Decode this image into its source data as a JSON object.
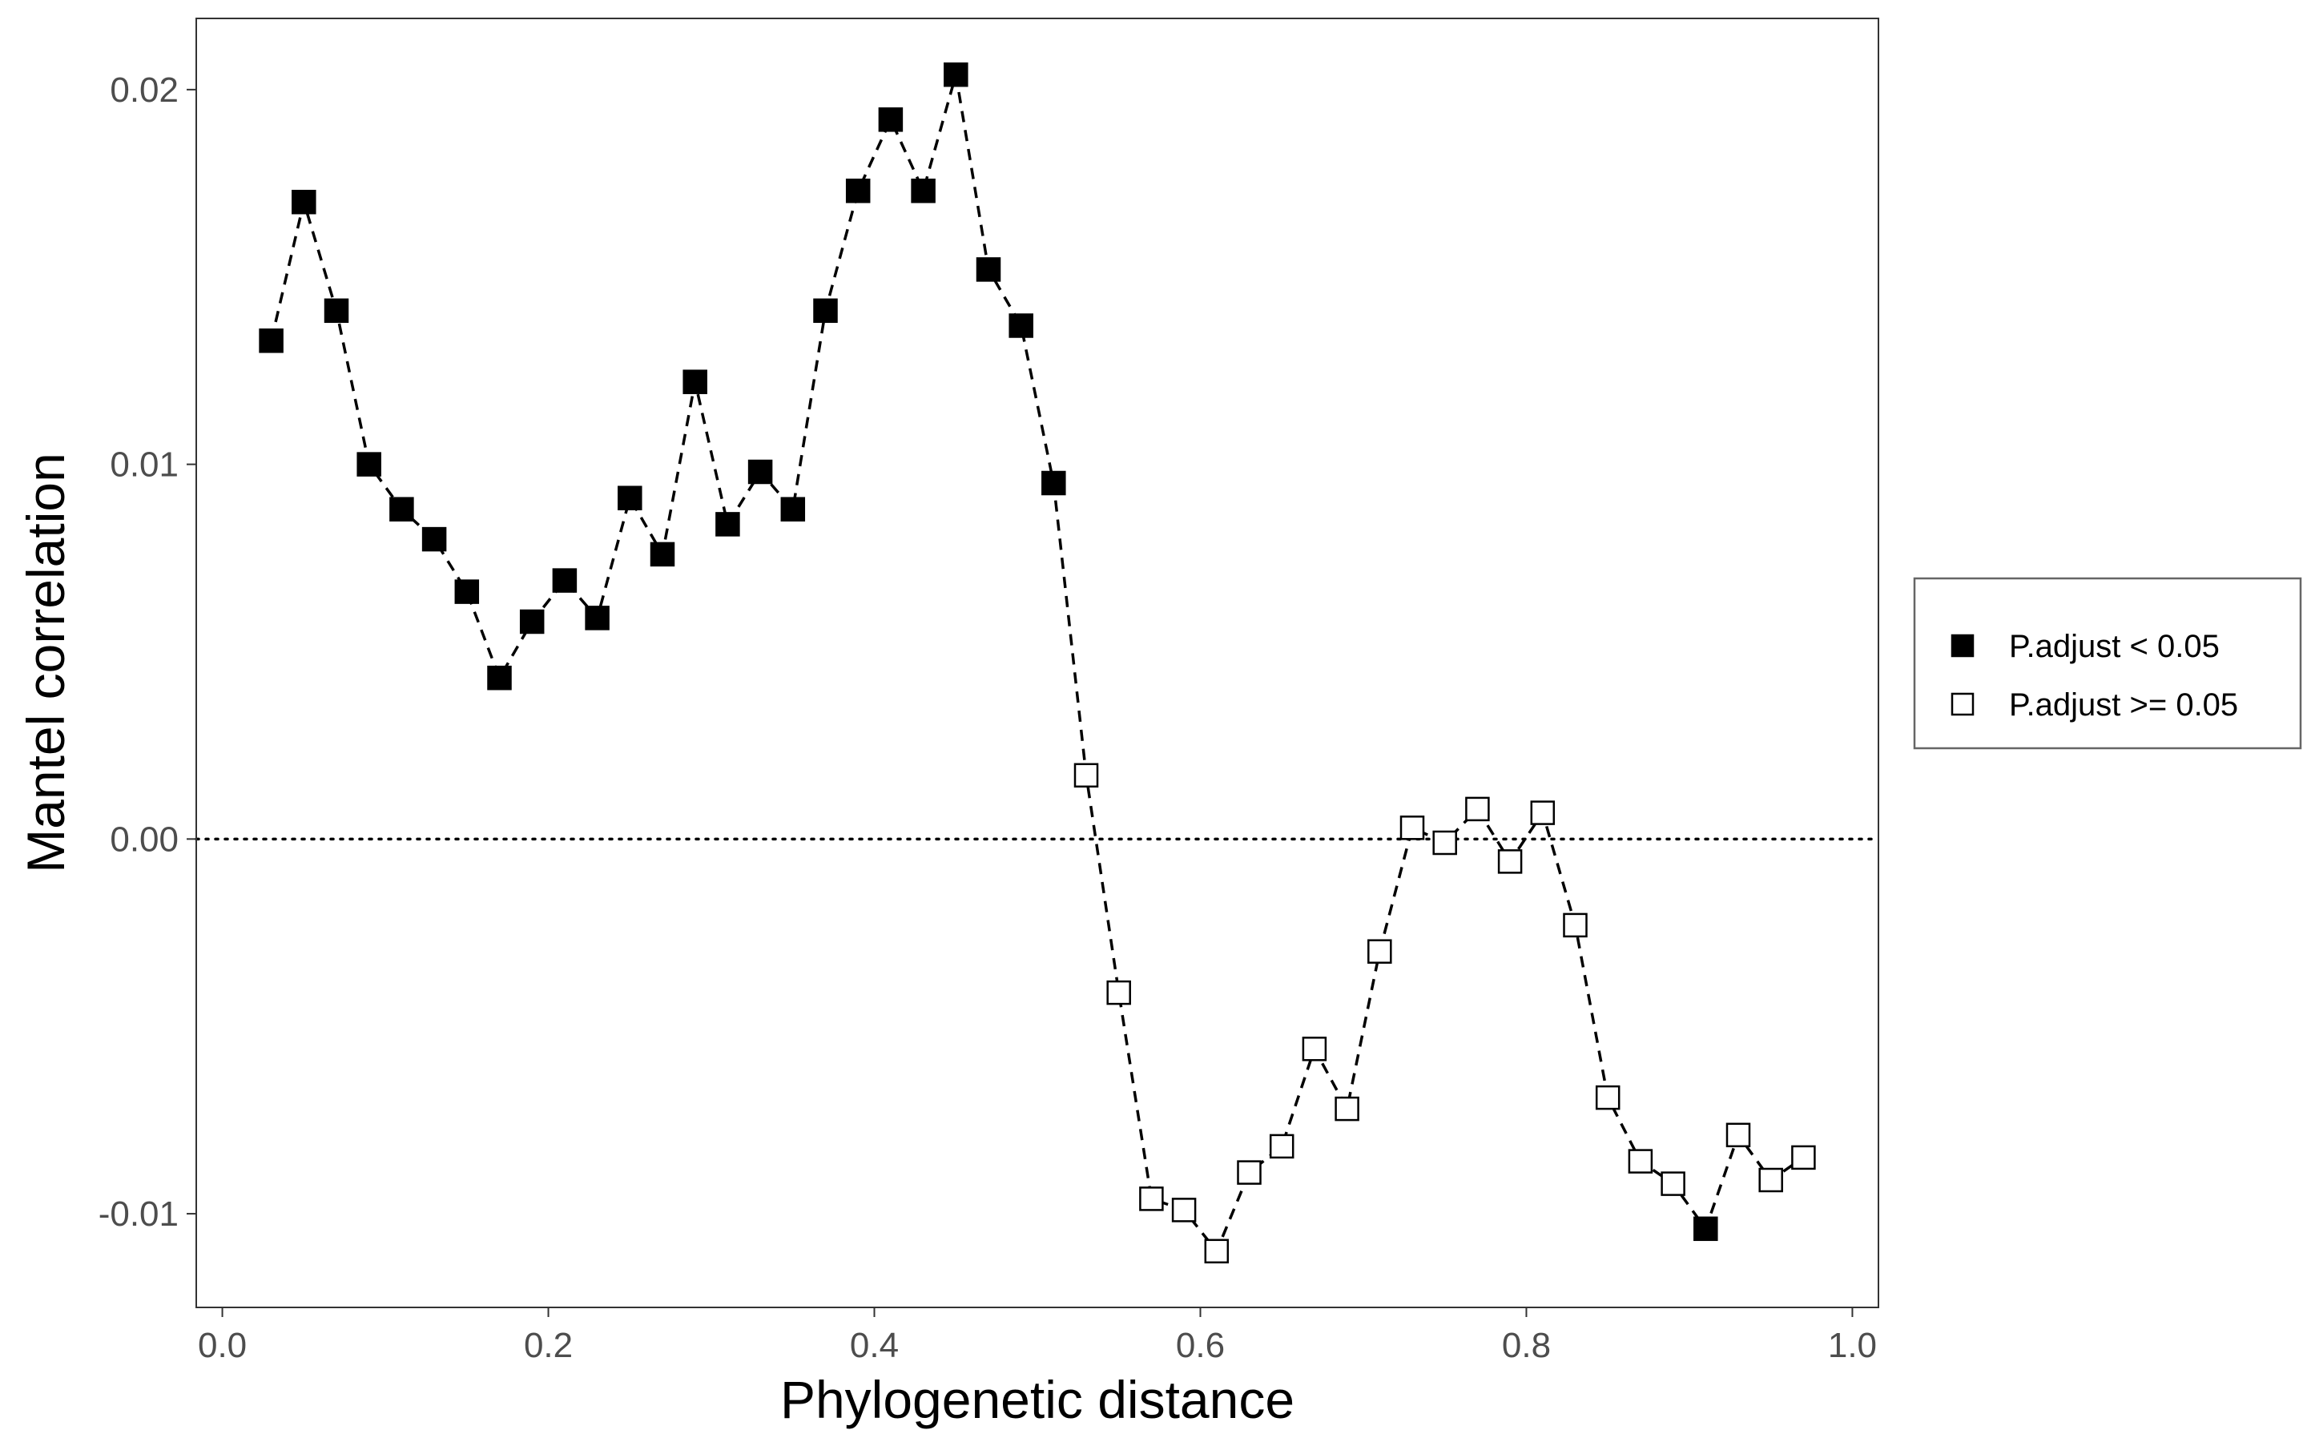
{
  "chart_data": {
    "type": "line",
    "title": "",
    "xlabel": "Phylogenetic distance",
    "ylabel": "Mantel correlation",
    "xlim": [
      -0.016,
      1.016
    ],
    "ylim": [
      -0.0125,
      0.0219
    ],
    "xticks": [
      0.0,
      0.2,
      0.4,
      0.6,
      0.8,
      1.0
    ],
    "xtick_labels": [
      "0.0",
      "0.2",
      "0.4",
      "0.6",
      "0.8",
      "1.0"
    ],
    "yticks": [
      -0.01,
      0.0,
      0.01,
      0.02
    ],
    "ytick_labels": [
      "-0.01",
      "0.00",
      "0.01",
      "0.02"
    ],
    "reference_line": {
      "y": 0.0,
      "style": "dotted"
    },
    "line_style": "dashed",
    "grid": false,
    "legend_position": "right",
    "legend": [
      {
        "label": "P.adjust < 0.05",
        "marker": "filled-square"
      },
      {
        "label": "P.adjust >= 0.05",
        "marker": "open-square"
      }
    ],
    "series": [
      {
        "x": [
          0.03,
          0.05,
          0.07,
          0.09,
          0.11,
          0.13,
          0.15,
          0.17,
          0.19,
          0.21,
          0.23,
          0.25,
          0.27,
          0.29,
          0.31,
          0.33,
          0.35,
          0.37,
          0.39,
          0.41,
          0.43,
          0.45,
          0.47,
          0.49,
          0.51,
          0.53,
          0.55,
          0.57,
          0.59,
          0.61,
          0.63,
          0.65,
          0.67,
          0.69,
          0.71,
          0.73,
          0.75,
          0.77,
          0.79,
          0.81,
          0.83,
          0.85,
          0.87,
          0.89,
          0.91,
          0.93,
          0.95,
          0.97
        ],
        "y": [
          0.0133,
          0.017,
          0.0141,
          0.01,
          0.0088,
          0.008,
          0.0066,
          0.0043,
          0.0058,
          0.0069,
          0.0059,
          0.0091,
          0.0076,
          0.0122,
          0.0084,
          0.0098,
          0.0088,
          0.0141,
          0.0173,
          0.0192,
          0.0173,
          0.0204,
          0.0152,
          0.0137,
          0.0095,
          0.0017,
          -0.0041,
          -0.0096,
          -0.0099,
          -0.011,
          -0.0089,
          -0.0082,
          -0.0056,
          -0.0072,
          -0.003,
          0.0003,
          -0.0001,
          0.0008,
          -0.0006,
          0.0007,
          -0.0023,
          -0.0069,
          -0.0086,
          -0.0092,
          -0.0104,
          -0.0079,
          -0.0091,
          -0.0085
        ],
        "significant": [
          true,
          true,
          true,
          true,
          true,
          true,
          true,
          true,
          true,
          true,
          true,
          true,
          true,
          true,
          true,
          true,
          true,
          true,
          true,
          true,
          true,
          true,
          true,
          true,
          true,
          false,
          false,
          false,
          false,
          false,
          false,
          false,
          false,
          false,
          false,
          false,
          false,
          false,
          false,
          false,
          false,
          false,
          false,
          false,
          true,
          false,
          false,
          false
        ]
      }
    ]
  }
}
